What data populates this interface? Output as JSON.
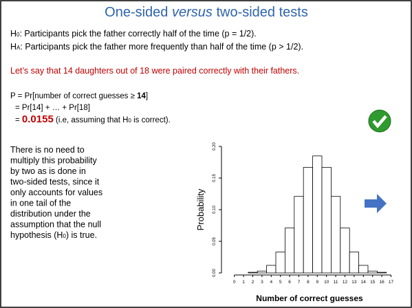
{
  "slide": {
    "title": [
      "One-sided ",
      "versus",
      " two-sided tests"
    ],
    "h0": [
      "H",
      "0",
      ": Participants pick the father correctly half of the time (p = 1/2)."
    ],
    "ha": [
      "H",
      "A",
      ": Participants pick the father more frequently than half of the time (p > 1/2)."
    ],
    "claim": "Let’s say that 14 daughters out of 18 were paired correctly with their fathers.",
    "calc1": [
      "P = Pr[number of correct guesses ≥ ",
      "14",
      "]"
    ],
    "calc2": "= Pr[14] + … + Pr[18]",
    "calc3": [
      "= ",
      "0.0155",
      " (i.e, assuming that H",
      "0",
      " is correct)."
    ],
    "note": [
      "There is no need to",
      "multiply this probability",
      "by two as is done in",
      "two-sided tests, since it",
      "only accounts for values",
      "in one tail of the",
      "distribution under the",
      "assumption that the null"
    ],
    "note_last": [
      "hypothesis (H",
      "0",
      ") is true."
    ]
  },
  "chart_data": {
    "type": "bar",
    "x_label": "Number of correct guesses",
    "y_label": "Probability",
    "categories": [
      "0",
      "1",
      "2",
      "3",
      "4",
      "5",
      "6",
      "7",
      "8",
      "9",
      "10",
      "11",
      "12",
      "13",
      "14",
      "15",
      "16",
      "17"
    ],
    "values": [
      0,
      0,
      0.001,
      0.003,
      0.012,
      0.033,
      0.071,
      0.121,
      0.167,
      0.185,
      0.167,
      0.121,
      0.071,
      0.033,
      0.012,
      0.003,
      0.001,
      0
    ],
    "color": "#ffffff",
    "ylim": [
      0,
      0.2
    ],
    "yticks": [
      {
        "value": 0,
        "label": "0.00"
      },
      {
        "value": 0.05,
        "label": "0.05"
      },
      {
        "value": 0.1,
        "label": "0.10"
      },
      {
        "value": 0.15,
        "label": "0.15"
      },
      {
        "value": 0.2,
        "label": "0.20"
      }
    ]
  }
}
